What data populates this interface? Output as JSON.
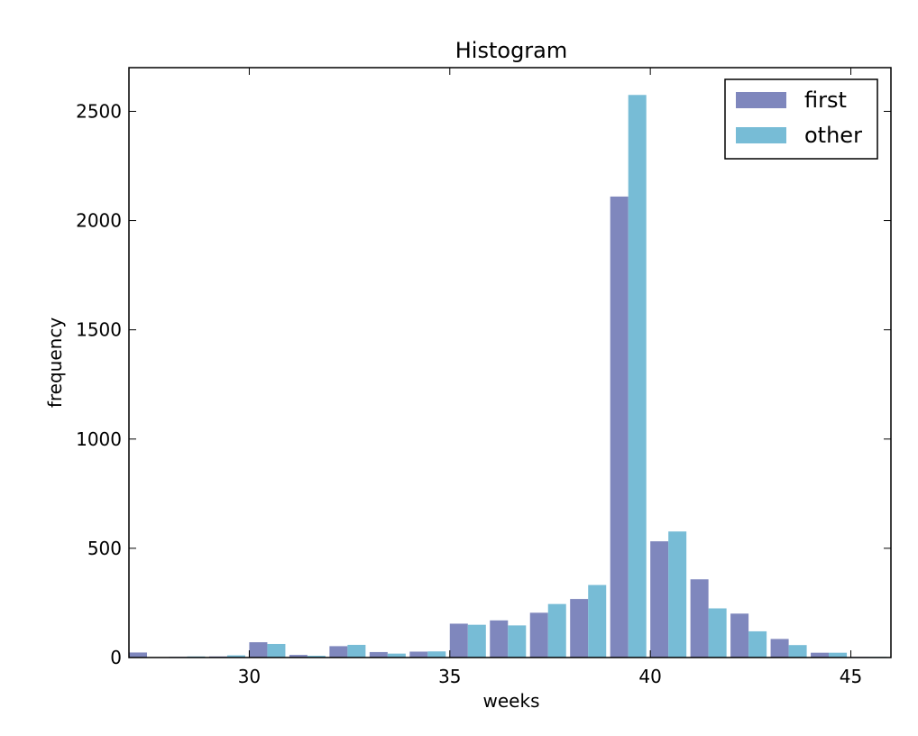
{
  "chart_data": {
    "type": "bar",
    "title": "Histogram",
    "xlabel": "weeks",
    "ylabel": "frequency",
    "xlim": [
      27,
      46
    ],
    "ylim": [
      0,
      2700
    ],
    "x_ticks": [
      30,
      35,
      40,
      45
    ],
    "y_ticks": [
      0,
      500,
      1000,
      1500,
      2000,
      2500
    ],
    "grid": false,
    "legend_position": "top-right",
    "x": [
      27,
      28,
      29,
      30,
      31,
      32,
      33,
      34,
      35,
      36,
      37,
      38,
      39,
      40,
      41,
      42,
      43,
      44,
      45
    ],
    "series": [
      {
        "name": "first",
        "color": "#7f87bd",
        "values": [
          23,
          3,
          5,
          70,
          12,
          52,
          25,
          27,
          155,
          170,
          205,
          268,
          2110,
          532,
          358,
          201,
          85,
          22,
          3
        ]
      },
      {
        "name": "other",
        "color": "#77bcd6",
        "values": [
          0,
          5,
          10,
          62,
          8,
          58,
          18,
          28,
          150,
          147,
          245,
          332,
          2575,
          577,
          225,
          120,
          57,
          22,
          3
        ]
      }
    ]
  }
}
